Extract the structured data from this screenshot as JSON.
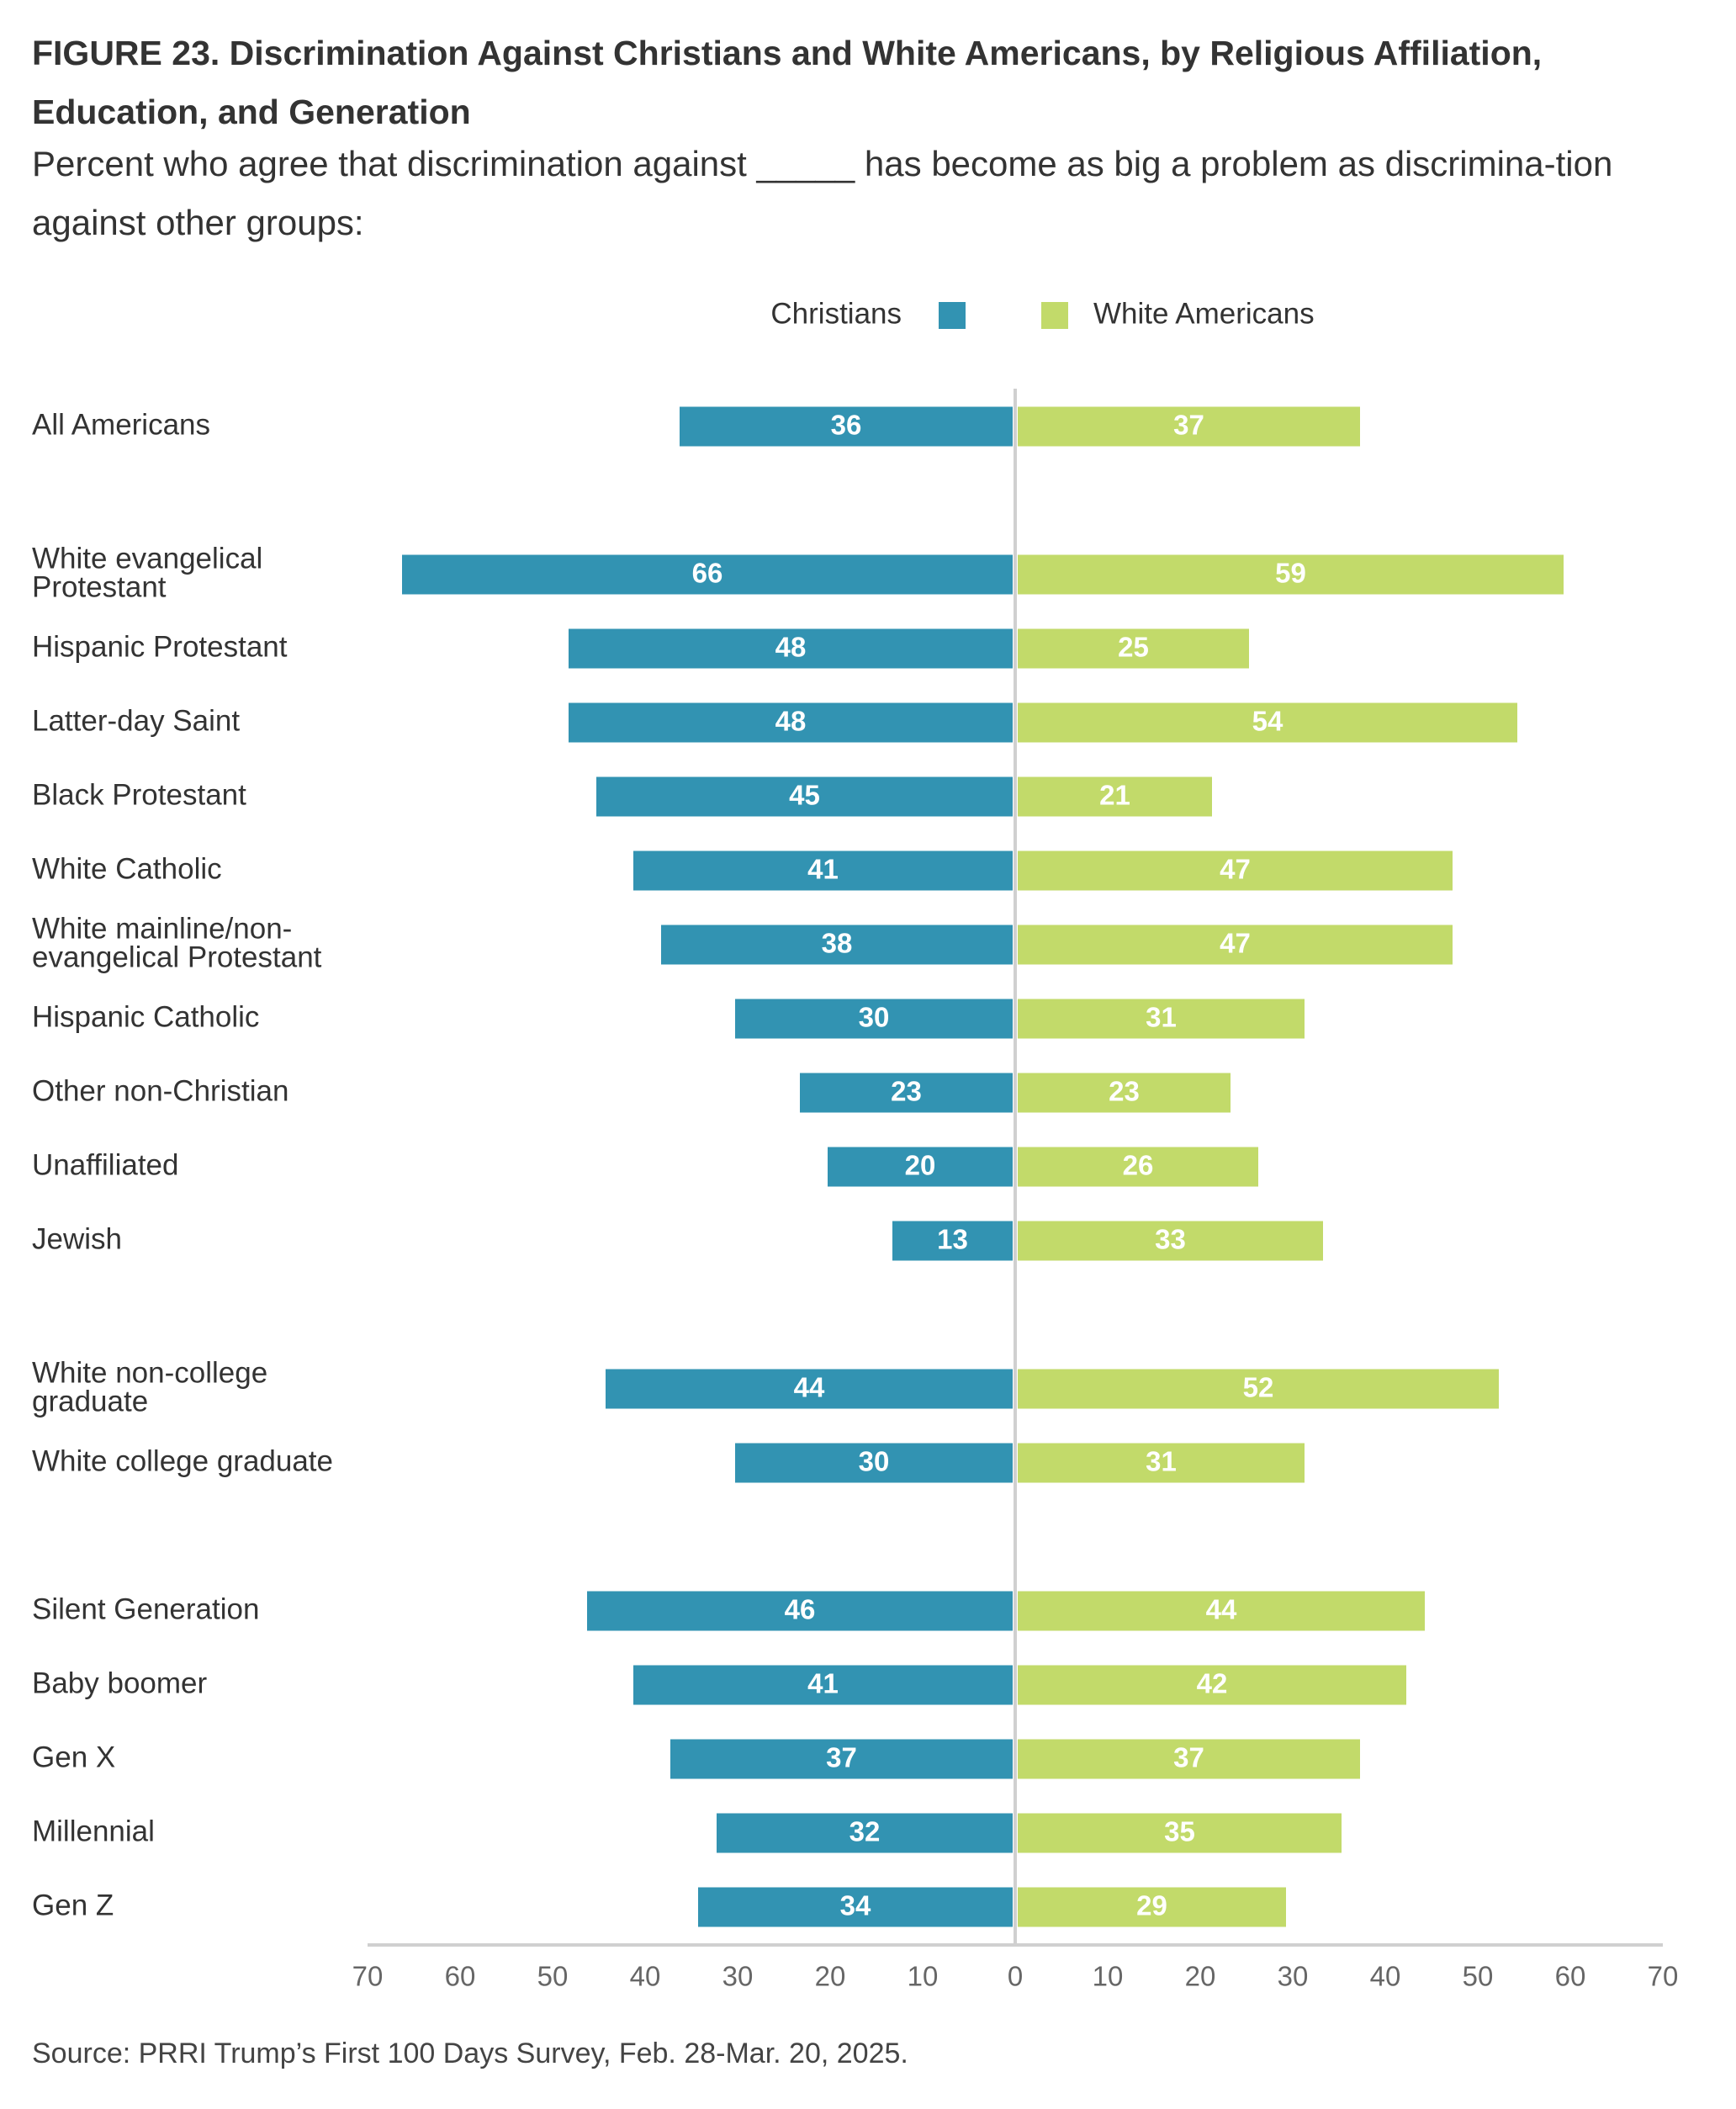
{
  "title": "FIGURE 23.  Discrimination Against Christians and White Americans, by Religious Affiliation, Education, and Generation",
  "subtitle": "Percent who agree that discrimination against _____ has become as big a problem as discrimina-tion against other groups:",
  "source": "Source: PRRI Trump’s First 100 Days Survey, Feb. 28-Mar. 20, 2025.",
  "colors": {
    "christians": "#3293b2",
    "white_americans": "#c2da6a",
    "axis": "#d0d0d0"
  },
  "chart_data": {
    "type": "bar",
    "orientation": "horizontal-diverging",
    "legend": {
      "placement": "top-center",
      "entries": [
        "Christians",
        "White Americans"
      ]
    },
    "xlim": [
      -70,
      70
    ],
    "xticks": [
      "70",
      "60",
      "50",
      "40",
      "30",
      "20",
      "10",
      "0",
      "10",
      "20",
      "30",
      "40",
      "50",
      "60",
      "70"
    ],
    "categories": [
      [
        "All Americans"
      ],
      [
        "White evangelical",
        "Protestant"
      ],
      [
        "Hispanic Protestant"
      ],
      [
        "Latter-day Saint"
      ],
      [
        "Black Protestant"
      ],
      [
        "White Catholic"
      ],
      [
        "White mainline/non-",
        "evangelical Protestant"
      ],
      [
        "Hispanic Catholic"
      ],
      [
        "Other non-Christian"
      ],
      [
        "Unaffiliated"
      ],
      [
        "Jewish"
      ],
      [
        "White non-college",
        "graduate"
      ],
      [
        "White college graduate"
      ],
      [
        "Silent Generation"
      ],
      [
        "Baby boomer"
      ],
      [
        "Gen X"
      ],
      [
        "Millennial"
      ],
      [
        "Gen Z"
      ]
    ],
    "groups": [
      [
        0
      ],
      [
        1,
        2,
        3,
        4,
        5,
        6,
        7,
        8,
        9,
        10
      ],
      [
        11,
        12
      ],
      [
        13,
        14,
        15,
        16,
        17
      ]
    ],
    "series": [
      {
        "name": "Christians",
        "side": "left",
        "values": [
          36,
          66,
          48,
          48,
          45,
          41,
          38,
          30,
          23,
          20,
          13,
          44,
          30,
          46,
          41,
          37,
          32,
          34
        ]
      },
      {
        "name": "White Americans",
        "side": "right",
        "values": [
          37,
          59,
          25,
          54,
          21,
          47,
          47,
          31,
          23,
          26,
          33,
          52,
          31,
          44,
          42,
          37,
          35,
          29
        ]
      }
    ],
    "grid": false
  }
}
